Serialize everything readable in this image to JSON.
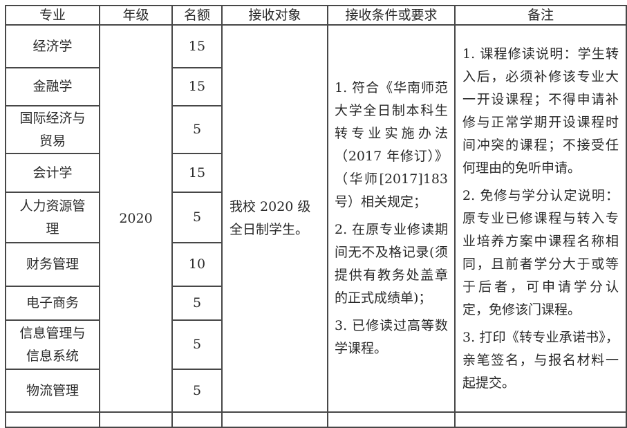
{
  "table": {
    "headers": [
      "专业",
      "年级",
      "名额",
      "接收对象",
      "接收条件或要求",
      "备注"
    ],
    "rows": [
      {
        "major": "经济学",
        "quota": "15"
      },
      {
        "major": "金融学",
        "quota": "15"
      },
      {
        "major": "国际经济与贸易",
        "quota": "5"
      },
      {
        "major": "会计学",
        "quota": "15"
      },
      {
        "major": "人力资源管理",
        "quota": "5"
      },
      {
        "major": "财务管理",
        "quota": "10"
      },
      {
        "major": "电子商务",
        "quota": "5"
      },
      {
        "major": "信息管理与信息系统",
        "quota": "5"
      },
      {
        "major": "物流管理",
        "quota": "5"
      }
    ],
    "grade": "2020",
    "target": "我校 2020 级全日制学生。",
    "conditions": [
      "1. 符合《华南师范大学全日制本科生转专业实施办法（2017 年修订）》（华师[2017]183 号）相关规定；",
      "2. 在原专业修读期间无不及格记录(须提供有教务处盖章的正式成绩单)；",
      "3. 已修读过高等数学课程。"
    ],
    "remarks": [
      "1. 课程修读说明：学生转入后，必须补修该专业大一开设课程；不得申请补修与正常学期开设课程时间冲突的课程；不接受任何理由的免听申请。",
      "2. 免修与学分认定说明：原专业已修课程与转入专业培养方案中课程名称相同，且前者学分大于或等于后者，可申请学分认定，免修该门课程。",
      "3. 打印《转专业承诺书》，亲笔签名，与报名材料一起提交。"
    ]
  }
}
